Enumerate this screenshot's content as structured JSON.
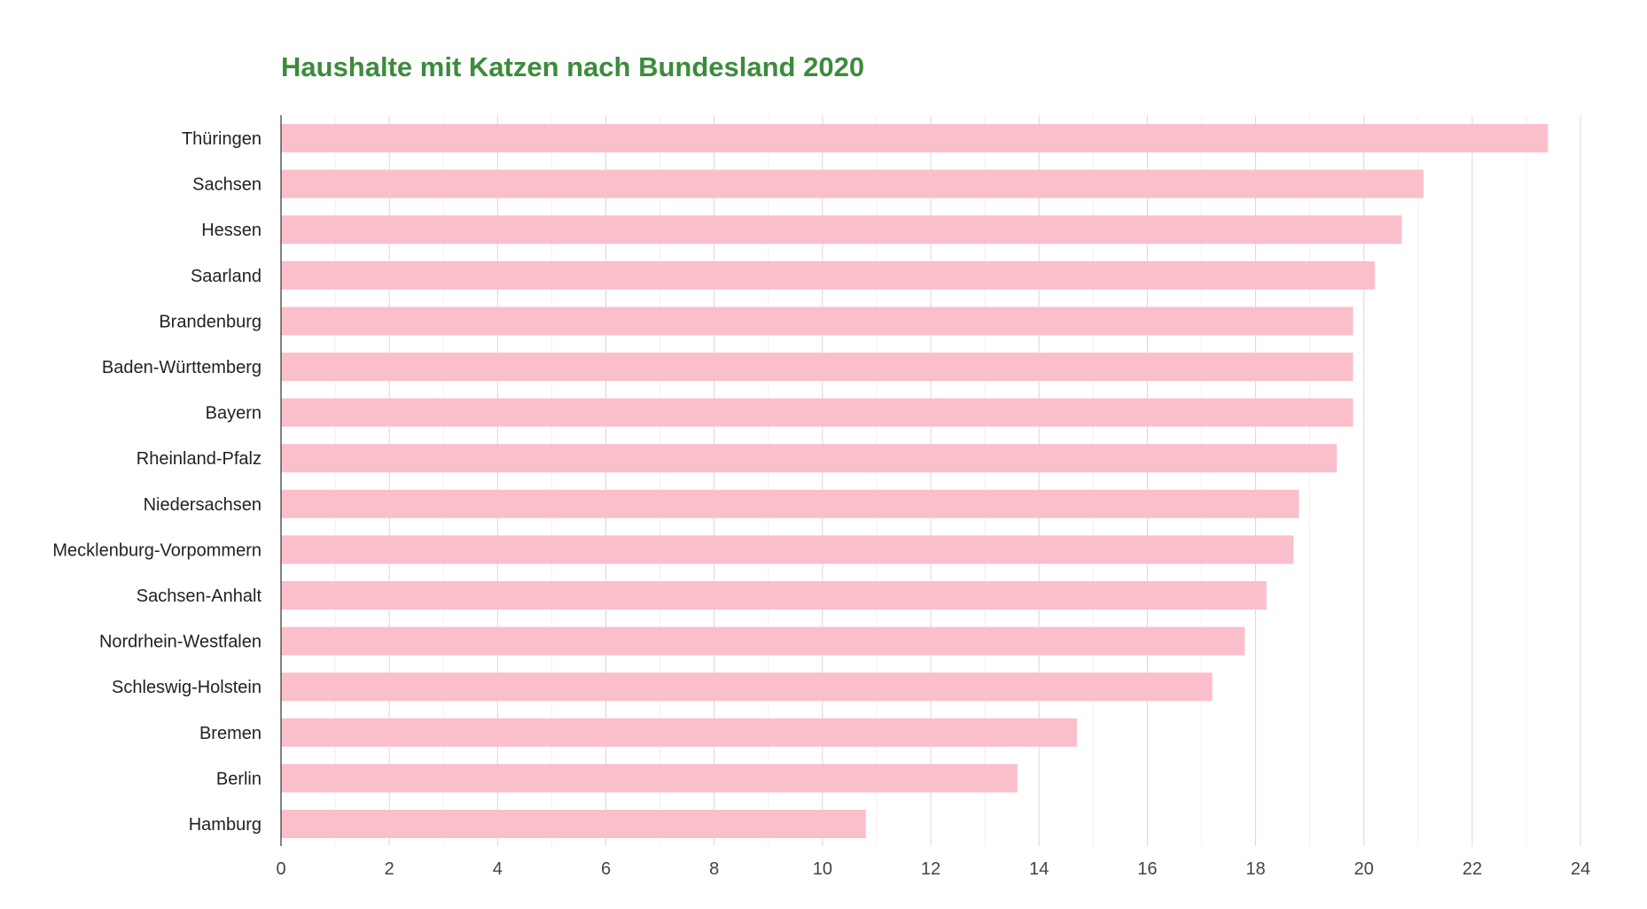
{
  "chart_data": {
    "type": "bar",
    "orientation": "horizontal",
    "title": "Haushalte mit Katzen nach Bundesland 2020",
    "xlabel": "",
    "ylabel": "",
    "xlim": [
      0,
      24
    ],
    "xticks": [
      0,
      2,
      4,
      6,
      8,
      10,
      12,
      14,
      16,
      18,
      20,
      22,
      24
    ],
    "grid": true,
    "legend": "none",
    "bar_color": "#fbbfcb",
    "title_color": "#3d8b3d",
    "categories": [
      "Thüringen",
      "Sachsen",
      "Hessen",
      "Saarland",
      "Brandenburg",
      "Baden-Württemberg",
      "Bayern",
      "Rheinland-Pfalz",
      "Niedersachsen",
      "Mecklenburg-Vorpommern",
      "Sachsen-Anhalt",
      "Nordrhein-Westfalen",
      "Schleswig-Holstein",
      "Bremen",
      "Berlin",
      "Hamburg"
    ],
    "values": [
      23.4,
      21.1,
      20.7,
      20.2,
      19.8,
      19.8,
      19.8,
      19.5,
      18.8,
      18.7,
      18.2,
      17.8,
      17.2,
      14.7,
      13.6,
      10.8
    ]
  }
}
